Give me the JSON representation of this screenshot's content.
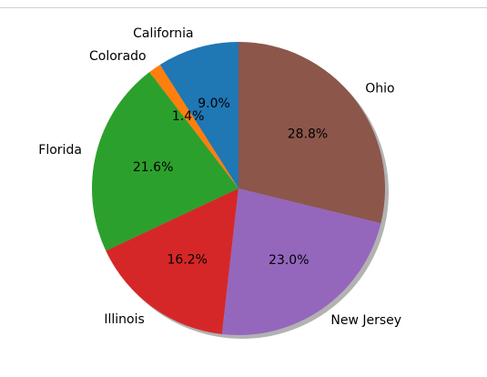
{
  "chart_data": {
    "type": "pie",
    "labels": [
      "California",
      "Colorado",
      "Florida",
      "Illinois",
      "New Jersey",
      "Ohio"
    ],
    "values": [
      9.0,
      1.4,
      21.6,
      16.2,
      23.0,
      28.8
    ],
    "autopct_labels": [
      "9.0%",
      "1.4%",
      "21.6%",
      "16.2%",
      "23.0%",
      "28.8%"
    ],
    "colors": [
      "#1f77b4",
      "#ff7f0e",
      "#2ca02c",
      "#d62728",
      "#9467bd",
      "#8c564b"
    ],
    "start_angle_deg": 90,
    "direction": "counterclockwise",
    "shadow": true,
    "title": ""
  }
}
